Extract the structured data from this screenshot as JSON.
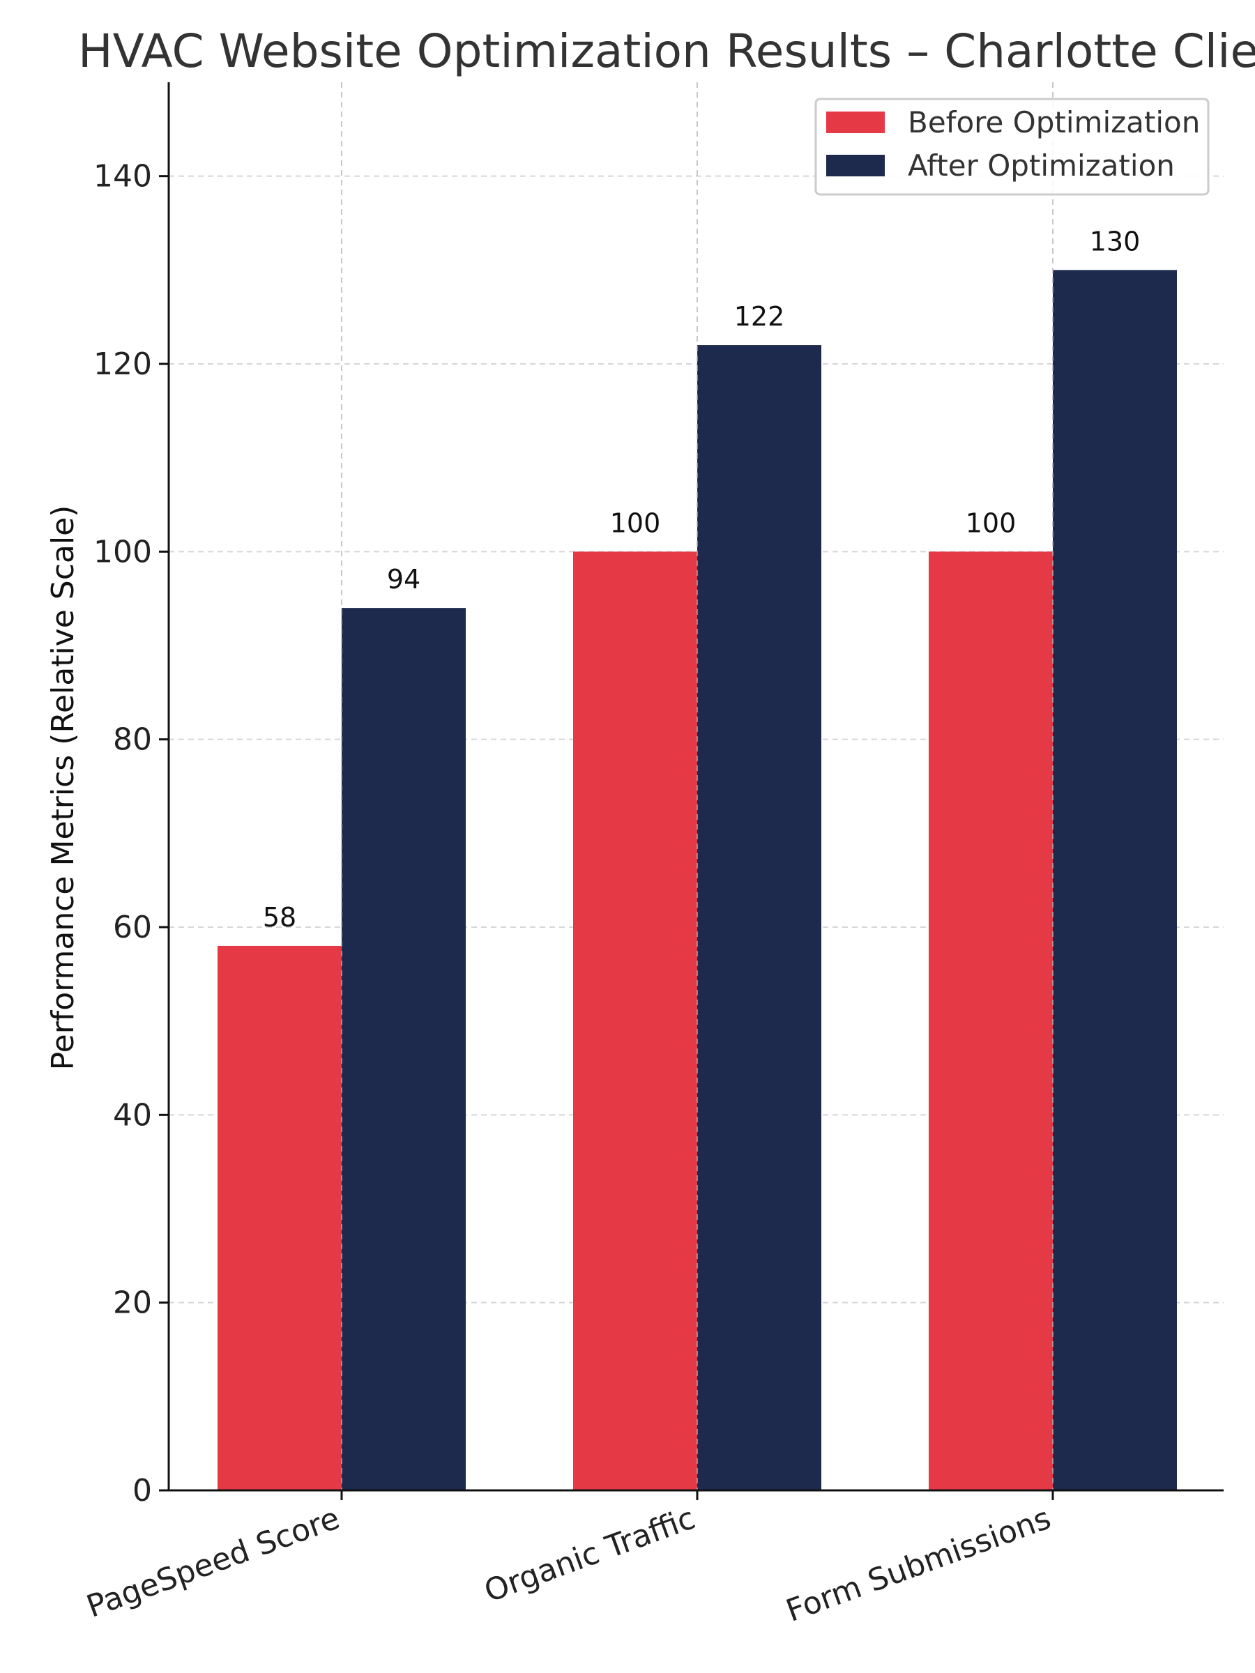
{
  "chart_data": {
    "type": "bar",
    "title": "HVAC Website Optimization Results – Charlotte Client",
    "xlabel": "",
    "ylabel": "Performance Metrics (Relative Scale)",
    "categories": [
      "PageSpeed Score",
      "Organic Traffic",
      "Form Submissions"
    ],
    "series": [
      {
        "name": "Before Optimization",
        "values": [
          58,
          100,
          100
        ],
        "color": "#e63946"
      },
      {
        "name": "After Optimization",
        "values": [
          94,
          122,
          130
        ],
        "color": "#1d2a4d"
      }
    ],
    "ylim": [
      0,
      150
    ],
    "yticks": [
      0,
      20,
      40,
      60,
      80,
      100,
      120,
      140
    ],
    "grid": true,
    "legend_position": "top-right"
  }
}
